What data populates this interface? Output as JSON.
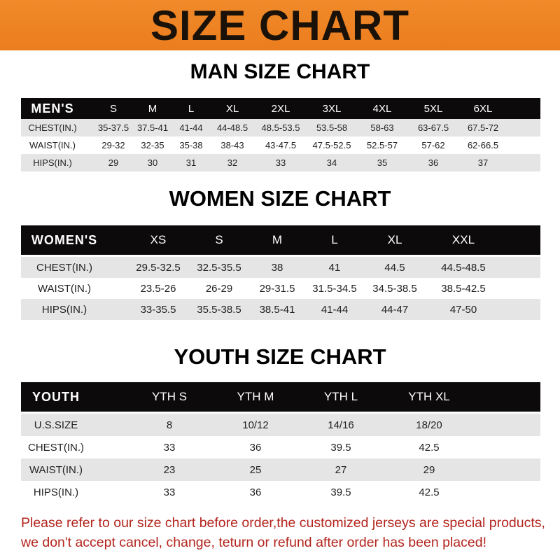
{
  "banner_title": "SIZE CHART",
  "men": {
    "title": "MAN SIZE CHART",
    "header": [
      "MEN'S",
      "S",
      "M",
      "L",
      "XL",
      "2XL",
      "3XL",
      "4XL",
      "5XL",
      "6XL"
    ],
    "rows": [
      [
        "CHEST(IN.)",
        "35-37.5",
        "37.5-41",
        "41-44",
        "44-48.5",
        "48.5-53.5",
        "53.5-58",
        "58-63",
        "63-67.5",
        "67.5-72"
      ],
      [
        "WAIST(IN.)",
        "29-32",
        "32-35",
        "35-38",
        "38-43",
        "43-47.5",
        "47.5-52.5",
        "52.5-57",
        "57-62",
        "62-66.5"
      ],
      [
        "HIPS(IN.)",
        "29",
        "30",
        "31",
        "32",
        "33",
        "34",
        "35",
        "36",
        "37"
      ]
    ]
  },
  "women": {
    "title": "WOMEN SIZE CHART",
    "header": [
      "WOMEN'S",
      "XS",
      "S",
      "M",
      "L",
      "XL",
      "XXL"
    ],
    "rows": [
      [
        "CHEST(IN.)",
        "29.5-32.5",
        "32.5-35.5",
        "38",
        "41",
        "44.5",
        "44.5-48.5"
      ],
      [
        "WAIST(IN.)",
        "23.5-26",
        "26-29",
        "29-31.5",
        "31.5-34.5",
        "34.5-38.5",
        "38.5-42.5"
      ],
      [
        "HIPS(IN.)",
        "33-35.5",
        "35.5-38.5",
        "38.5-41",
        "41-44",
        "44-47",
        "47-50"
      ]
    ]
  },
  "youth": {
    "title": "YOUTH SIZE CHART",
    "header": [
      "YOUTH",
      "YTH S",
      "YTH M",
      "YTH L",
      "YTH XL"
    ],
    "rows": [
      [
        "U.S.SIZE",
        "8",
        "10/12",
        "14/16",
        "18/20"
      ],
      [
        "CHEST(IN.)",
        "33",
        "36",
        "39.5",
        "42.5"
      ],
      [
        "WAIST(IN.)",
        "23",
        "25",
        "27",
        "29"
      ],
      [
        "HIPS(IN.)",
        "33",
        "36",
        "39.5",
        "42.5"
      ]
    ]
  },
  "footer": {
    "line1": "Please refer to our size chart before order,the customized jerseys are special products,",
    "line2": "we don't accept cancel, change, teturn or refund after order has been placed!"
  },
  "colors": {
    "banner": "#ec7d1e",
    "header_bg": "#0c0a0a",
    "footer_text": "#b3241c"
  }
}
